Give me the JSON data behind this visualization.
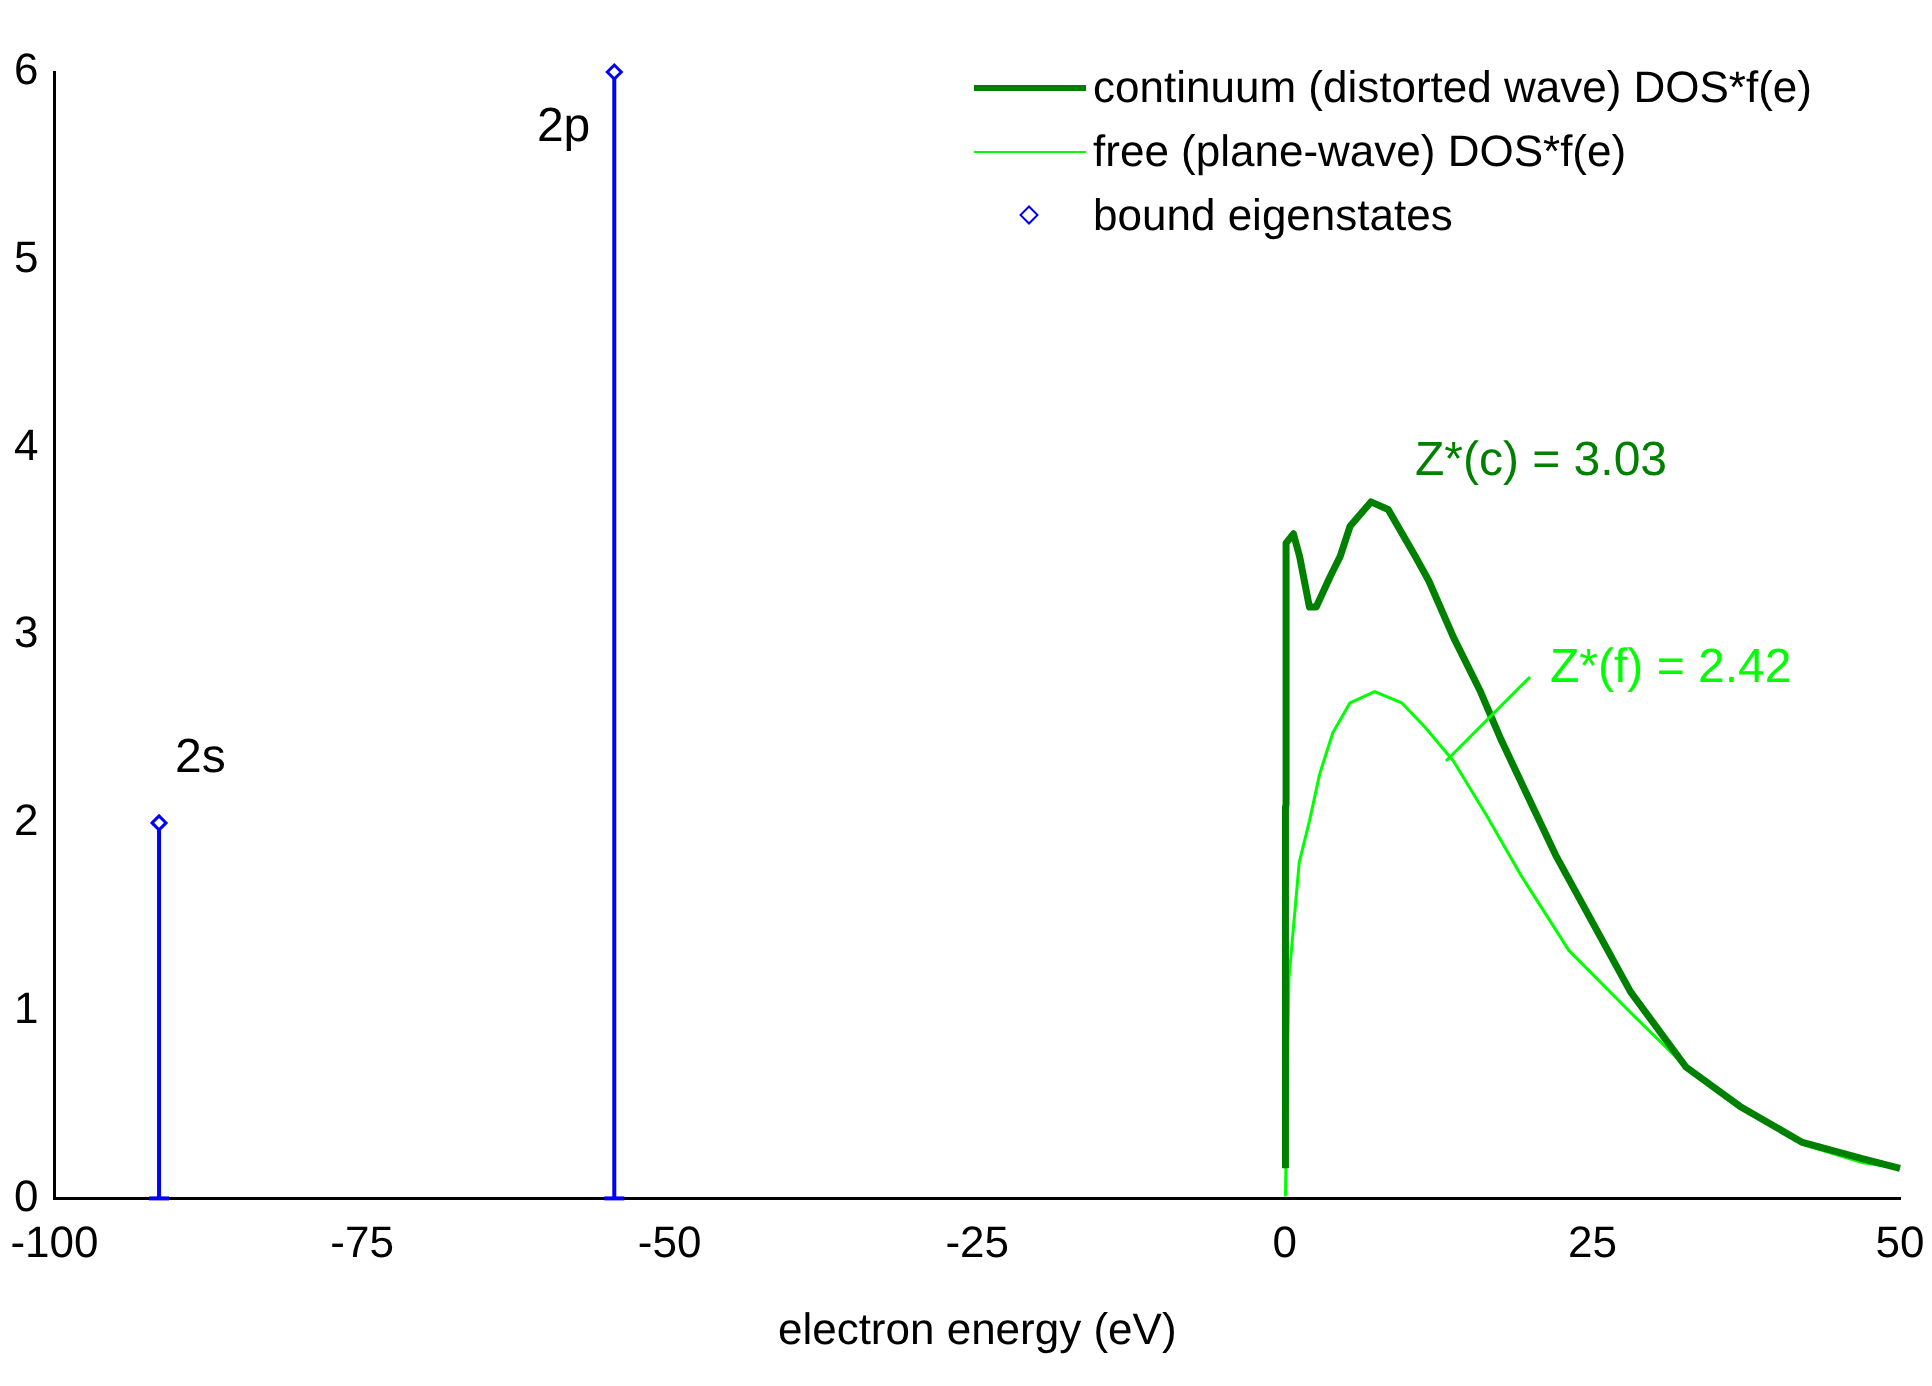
{
  "chart_data": {
    "type": "line",
    "xlabel": "electron energy (eV)",
    "xlim": [
      -100,
      50
    ],
    "xticks": [
      -100,
      -75,
      -50,
      -25,
      0,
      25,
      50
    ],
    "ylim": [
      0,
      6
    ],
    "yticks": [
      0,
      1,
      2,
      3,
      4,
      5,
      6
    ],
    "legend": "top right",
    "series": [
      {
        "name": "continuum (distorted wave) DOS*f(e)",
        "color": "#008000",
        "x": [
          0.05,
          0.05,
          0.1,
          0.1,
          0.7,
          1.2,
          2.0,
          2.55,
          3.67,
          4.5,
          5.3,
          7.0,
          8.4,
          10.6,
          11.7,
          13.7,
          15.9,
          17.6,
          22,
          28.1,
          32.6,
          37,
          42,
          47,
          50
        ],
        "values": [
          0.16,
          2.08,
          2.1,
          3.49,
          3.54,
          3.42,
          3.15,
          3.15,
          3.31,
          3.42,
          3.58,
          3.71,
          3.67,
          3.42,
          3.29,
          2.99,
          2.7,
          2.44,
          1.83,
          1.1,
          0.7,
          0.49,
          0.3,
          0.21,
          0.16
        ]
      },
      {
        "name": "free (plane-wave) DOS*f(e)",
        "color": "#00ff00",
        "x": [
          0.05,
          0.33,
          1.17,
          2.0,
          2.83,
          3.9,
          5.3,
          7.3,
          9.5,
          11.4,
          13.7,
          16.4,
          19.2,
          23.1,
          28.1,
          32,
          37,
          42,
          47,
          50
        ],
        "values": [
          0.01,
          1.17,
          1.79,
          2.01,
          2.26,
          2.48,
          2.64,
          2.7,
          2.64,
          2.51,
          2.33,
          2.04,
          1.72,
          1.32,
          0.99,
          0.74,
          0.49,
          0.29,
          0.19,
          0.16
        ]
      },
      {
        "name": "bound eigenstates",
        "color": "#0000ff",
        "type": "lollipop",
        "marker": "diamond",
        "x": [
          -91.5,
          -54.5
        ],
        "values": [
          2,
          6
        ]
      }
    ],
    "annotations": [
      {
        "text": "Z*(c) = 3.03",
        "x": 7,
        "y": 3.71
      },
      {
        "text": "Z*(f) = 2.42",
        "x": 13.1,
        "y": 2.33
      },
      {
        "text": "2s",
        "x": -91.5,
        "y": 2
      },
      {
        "text": "2p",
        "x": -54.5,
        "y": 6
      }
    ]
  }
}
